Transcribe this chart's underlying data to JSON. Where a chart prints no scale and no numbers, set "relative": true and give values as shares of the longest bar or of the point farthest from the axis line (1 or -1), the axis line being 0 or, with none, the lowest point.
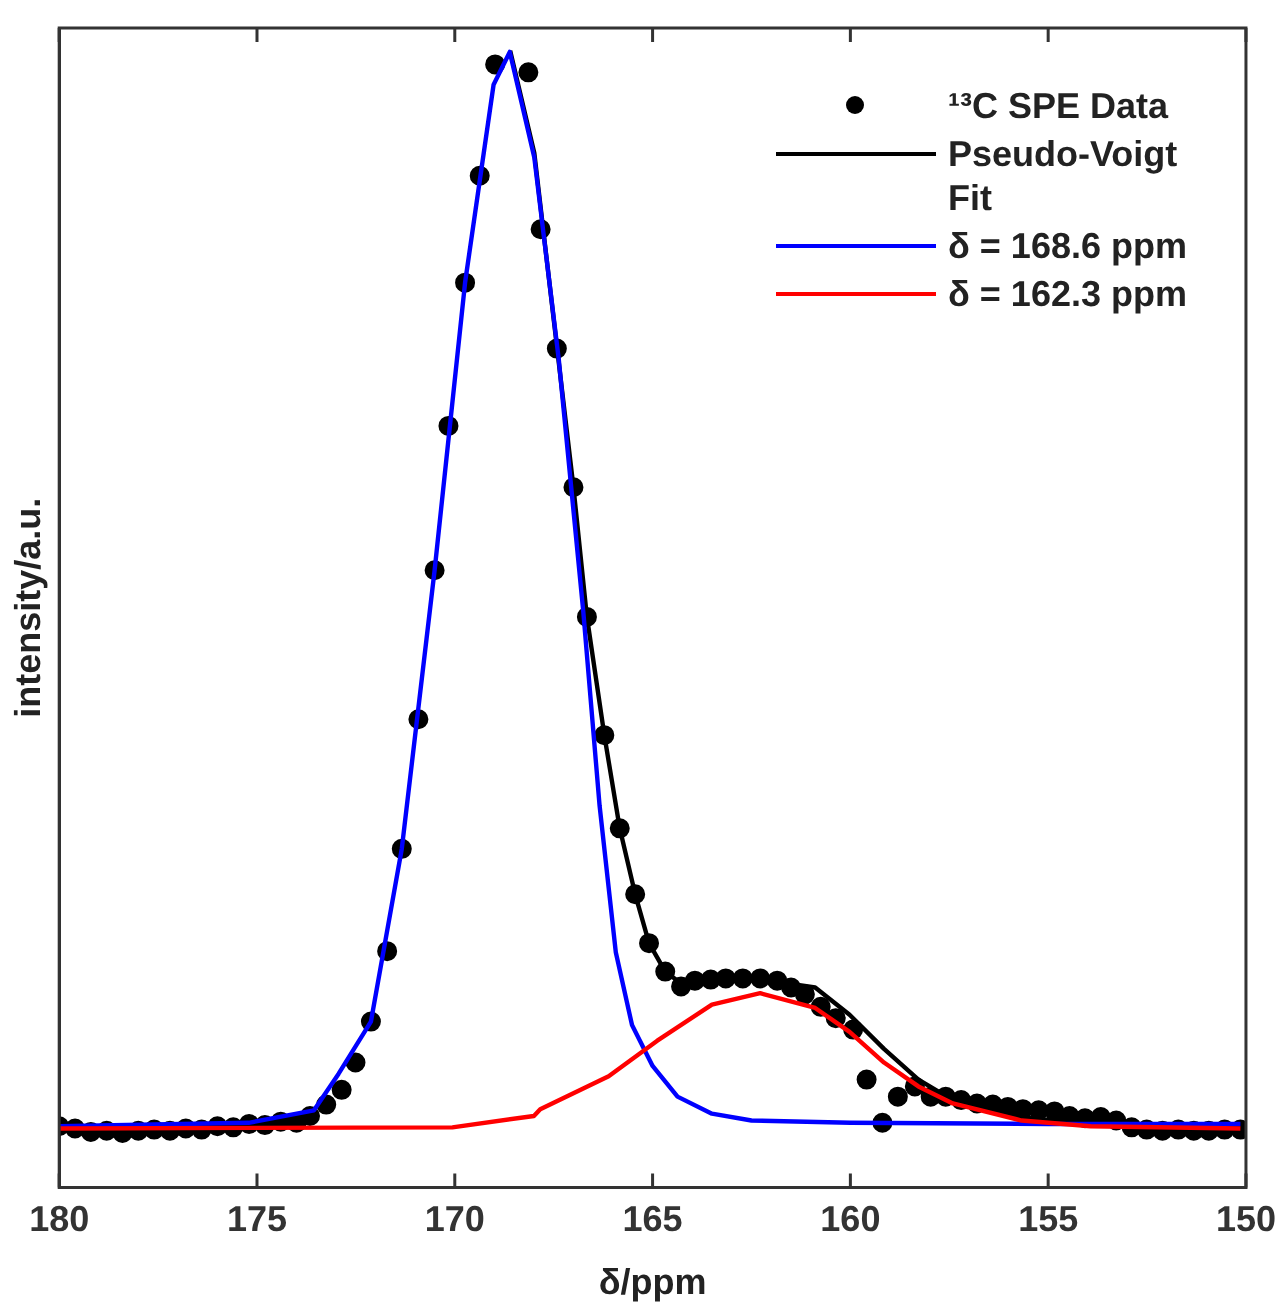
{
  "chart_data": {
    "type": "line",
    "xlabel": "δ/ppm",
    "ylabel": "intensity/a.u.",
    "relative": true,
    "xlim": [
      180,
      150
    ],
    "xticks": [
      180,
      175,
      170,
      165,
      160,
      155,
      150
    ],
    "grid": false,
    "legend": "top right",
    "line_style": "solid",
    "series": [
      {
        "name": "¹³C SPE Data",
        "type": "scatter",
        "marker": "circle",
        "color": "#000000",
        "x": [
          180.0,
          179.6,
          179.2,
          178.8,
          178.4,
          178.0,
          177.6,
          177.2,
          176.8,
          176.4,
          176.0,
          175.6,
          175.2,
          174.8,
          174.4,
          174.0,
          173.66,
          173.25,
          172.86,
          172.51,
          172.12,
          171.71,
          171.34,
          170.92,
          170.51,
          170.16,
          169.74,
          169.37,
          168.98,
          168.14,
          167.83,
          167.42,
          167.0,
          166.66,
          166.22,
          165.83,
          165.44,
          165.09,
          164.68,
          164.28,
          163.93,
          163.53,
          163.15,
          162.72,
          162.28,
          161.85,
          161.5,
          161.15,
          160.75,
          160.37,
          159.93,
          159.59,
          159.19,
          158.8,
          158.37,
          157.97,
          157.59,
          157.2,
          156.8,
          156.4,
          156.02,
          155.64,
          155.24,
          154.84,
          154.46,
          154.07,
          153.67,
          153.28,
          152.89,
          152.51,
          152.11,
          151.71,
          151.32,
          150.94,
          150.54,
          150.14
        ],
        "values": [
          0.054,
          0.052,
          0.049,
          0.05,
          0.048,
          0.05,
          0.051,
          0.05,
          0.052,
          0.051,
          0.054,
          0.053,
          0.056,
          0.055,
          0.058,
          0.057,
          0.063,
          0.073,
          0.086,
          0.11,
          0.146,
          0.208,
          0.298,
          0.412,
          0.543,
          0.67,
          0.796,
          0.89,
          0.988,
          0.981,
          0.843,
          0.738,
          0.616,
          0.502,
          0.398,
          0.316,
          0.258,
          0.215,
          0.19,
          0.177,
          0.182,
          0.183,
          0.184,
          0.184,
          0.184,
          0.182,
          0.176,
          0.17,
          0.159,
          0.149,
          0.139,
          0.095,
          0.057,
          0.08,
          0.089,
          0.08,
          0.08,
          0.077,
          0.074,
          0.073,
          0.071,
          0.069,
          0.068,
          0.067,
          0.063,
          0.061,
          0.062,
          0.059,
          0.053,
          0.051,
          0.05,
          0.051,
          0.05,
          0.05,
          0.051,
          0.051
        ]
      },
      {
        "name": "Pseudo-Voigt Fit",
        "type": "line",
        "color": "#000000",
        "x": [
          168.6,
          167.99,
          167.42,
          167.0,
          166.66,
          166.22,
          165.83,
          165.44,
          165.09,
          164.68,
          164.37,
          162.63,
          160.89,
          160.02,
          159.15,
          158.28,
          157.41,
          155.67,
          153.93,
          150.14
        ],
        "values": [
          1.0,
          0.91,
          0.74,
          0.616,
          0.502,
          0.398,
          0.316,
          0.258,
          0.215,
          0.19,
          0.182,
          0.185,
          0.176,
          0.152,
          0.122,
          0.095,
          0.077,
          0.062,
          0.056,
          0.052
        ]
      },
      {
        "name": "δ = 168.6 ppm",
        "type": "line",
        "color": "#0000ff",
        "x": [
          180.0,
          175.21,
          173.56,
          172.94,
          172.12,
          171.34,
          170.51,
          169.74,
          169.02,
          168.61,
          167.99,
          167.37,
          166.75,
          166.34,
          165.93,
          165.52,
          165.0,
          164.37,
          163.5,
          162.5,
          160.0,
          155.0,
          150.14
        ],
        "values": [
          0.054,
          0.057,
          0.068,
          0.1,
          0.146,
          0.298,
          0.543,
          0.796,
          0.97,
          0.999,
          0.906,
          0.728,
          0.506,
          0.336,
          0.207,
          0.143,
          0.107,
          0.08,
          0.065,
          0.059,
          0.057,
          0.056,
          0.056
        ]
      },
      {
        "name": "δ = 162.3 ppm",
        "type": "line",
        "color": "#ff0000",
        "x": [
          180.0,
          170.06,
          168.0,
          167.84,
          166.11,
          164.89,
          163.5,
          162.28,
          160.89,
          160.02,
          159.15,
          158.28,
          157.41,
          155.67,
          153.93,
          150.14
        ],
        "values": [
          0.052,
          0.053,
          0.063,
          0.069,
          0.098,
          0.129,
          0.161,
          0.171,
          0.158,
          0.137,
          0.11,
          0.089,
          0.074,
          0.059,
          0.054,
          0.052
        ]
      }
    ]
  }
}
